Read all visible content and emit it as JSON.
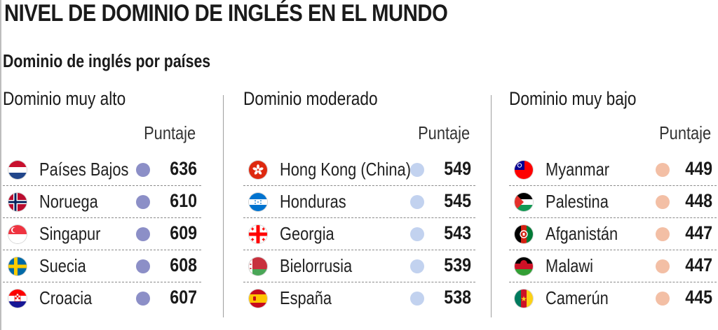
{
  "title": "NIVEL DE DOMINIO DE INGLÉS EN EL MUNDO",
  "subtitle": "Dominio de inglés por países",
  "score_label": "Puntaje",
  "chart_data": {
    "type": "table",
    "title": "NIVEL DE DOMINIO DE INGLÉS EN EL MUNDO",
    "subtitle": "Dominio de inglés por países",
    "groups": [
      {
        "name": "Dominio muy alto",
        "dot_color": "#8c8fc7",
        "rows": [
          {
            "country": "Países Bajos",
            "flag": "netherlands-flag-icon",
            "score": 636
          },
          {
            "country": "Noruega",
            "flag": "norway-flag-icon",
            "score": 610
          },
          {
            "country": "Singapur",
            "flag": "singapore-flag-icon",
            "score": 609
          },
          {
            "country": "Suecia",
            "flag": "sweden-flag-icon",
            "score": 608
          },
          {
            "country": "Croacia",
            "flag": "croatia-flag-icon",
            "score": 607
          }
        ]
      },
      {
        "name": "Dominio moderado",
        "dot_color": "#c2d2ef",
        "rows": [
          {
            "country": "Hong Kong (China)",
            "flag": "hong-kong-flag-icon",
            "score": 549
          },
          {
            "country": "Honduras",
            "flag": "honduras-flag-icon",
            "score": 545
          },
          {
            "country": "Georgia",
            "flag": "georgia-flag-icon",
            "score": 543
          },
          {
            "country": "Bielorrusia",
            "flag": "belarus-flag-icon",
            "score": 539
          },
          {
            "country": "España",
            "flag": "spain-flag-icon",
            "score": 538
          }
        ]
      },
      {
        "name": "Dominio muy bajo",
        "dot_color": "#f3bfa5",
        "rows": [
          {
            "country": "Myanmar",
            "flag": "myanmar-flag-icon",
            "score": 449
          },
          {
            "country": "Palestina",
            "flag": "palestine-flag-icon",
            "score": 448
          },
          {
            "country": "Afganistán",
            "flag": "afghanistan-flag-icon",
            "score": 447
          },
          {
            "country": "Malawi",
            "flag": "malawi-flag-icon",
            "score": 447
          },
          {
            "country": "Camerún",
            "flag": "cameroon-flag-icon",
            "score": 445
          }
        ]
      }
    ]
  }
}
